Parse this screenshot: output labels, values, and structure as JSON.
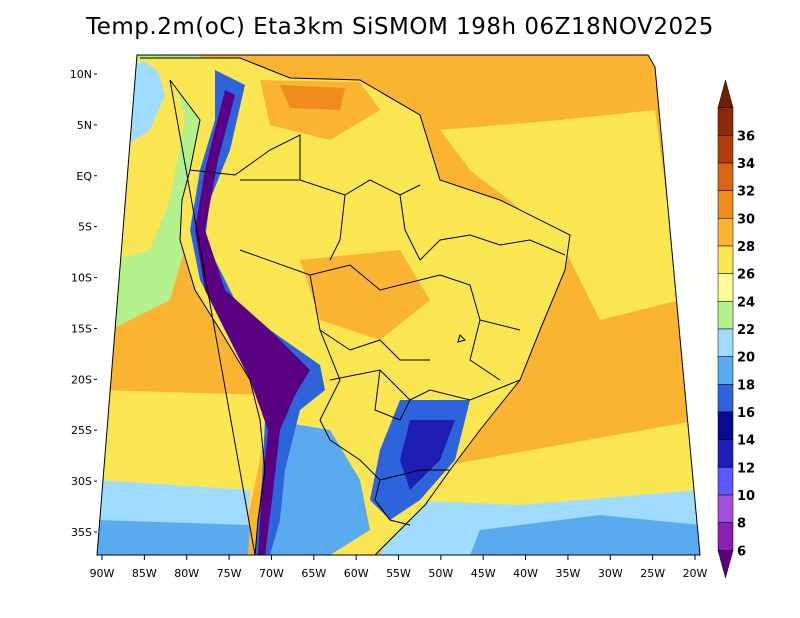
{
  "title": "Temp.2m(oC) Eta3km SiSMOM 198h 06Z18NOV2025",
  "lat_labels": [
    "10N",
    "5N",
    "EQ",
    "5S",
    "10S",
    "15S",
    "20S",
    "25S",
    "30S",
    "35S"
  ],
  "lon_labels": [
    "90W",
    "85W",
    "80W",
    "75W",
    "70W",
    "65W",
    "60W",
    "55W",
    "50W",
    "45W",
    "40W",
    "35W",
    "30W",
    "25W",
    "20W"
  ],
  "colorbar": {
    "levels": [
      "6",
      "8",
      "10",
      "12",
      "14",
      "16",
      "18",
      "20",
      "22",
      "24",
      "26",
      "28",
      "30",
      "32",
      "34",
      "36"
    ],
    "colors": [
      "#5a0082",
      "#8c1eb4",
      "#a050dc",
      "#5a5aff",
      "#1e1eb4",
      "#0a0a8c",
      "#2d64dc",
      "#5aaaf0",
      "#a0dcff",
      "#b4f08c",
      "#fafa96",
      "#fae650",
      "#fab432",
      "#f08c1e",
      "#dc6414",
      "#b43c0a",
      "#8c2808",
      "#6e2006"
    ],
    "unit": "oC"
  },
  "map_colors": {
    "ocean_warm": "#fab432",
    "ocean_mild": "#fae650",
    "ocean_cool": "#b4f08c",
    "ocean_cold": "#a0dcff",
    "land_base": "#fae650",
    "land_warm": "#fab432",
    "land_hot": "#f08c1e",
    "highland_cold": "#5a0082",
    "highland_cool": "#2d64dc",
    "borders": "#000000"
  }
}
